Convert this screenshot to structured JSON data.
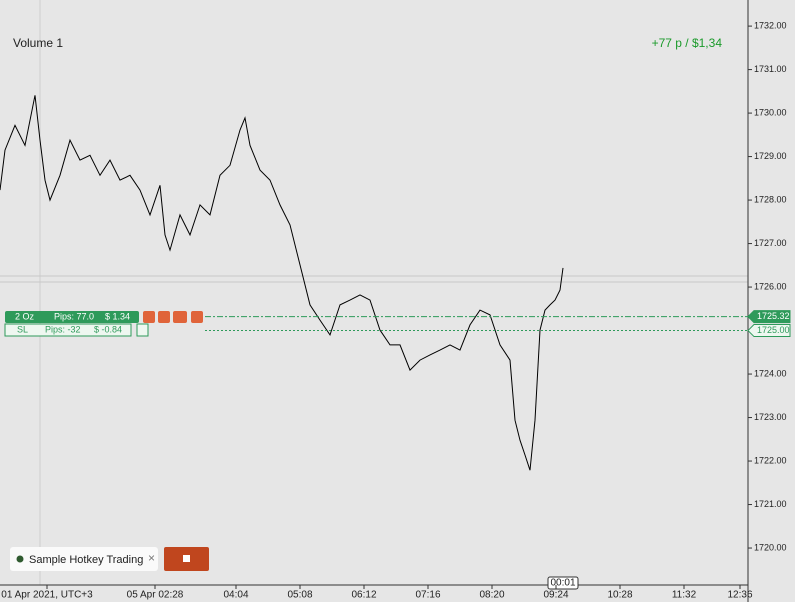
{
  "chart_data": {
    "type": "line",
    "color": "#000000",
    "x": [
      0,
      5,
      15,
      25,
      35,
      40,
      45,
      50,
      60,
      70,
      80,
      90,
      100,
      110,
      120,
      130,
      140,
      150,
      160,
      165,
      170,
      180,
      190,
      200,
      210,
      220,
      230,
      240,
      245,
      250,
      260,
      270,
      280,
      290,
      300,
      310,
      320,
      330,
      340,
      350,
      360,
      370,
      380,
      390,
      400,
      410,
      420,
      430,
      440,
      450,
      460,
      470,
      480,
      490,
      500,
      510,
      515,
      520,
      525,
      530,
      535,
      540,
      545,
      550,
      555,
      560,
      563
    ],
    "values": [
      1728.23,
      1729.15,
      1729.72,
      1729.26,
      1730.41,
      1729.38,
      1728.46,
      1728.0,
      1728.57,
      1729.38,
      1728.92,
      1729.03,
      1728.57,
      1728.92,
      1728.46,
      1728.57,
      1728.23,
      1727.66,
      1728.34,
      1727.2,
      1726.85,
      1727.66,
      1727.2,
      1727.89,
      1727.66,
      1728.57,
      1728.8,
      1729.61,
      1729.89,
      1729.26,
      1728.69,
      1728.46,
      1727.89,
      1727.43,
      1726.51,
      1725.59,
      1725.24,
      1724.9,
      1725.59,
      1725.7,
      1725.82,
      1725.7,
      1725.01,
      1724.67,
      1724.67,
      1724.09,
      1724.32,
      1724.44,
      1724.55,
      1724.67,
      1724.55,
      1725.13,
      1725.47,
      1725.36,
      1724.67,
      1724.32,
      1722.94,
      1722.48,
      1722.14,
      1721.79,
      1722.94,
      1725.01,
      1725.47,
      1725.59,
      1725.7,
      1725.93,
      1726.44
    ],
    "xlim": [
      0,
      748
    ],
    "ylim": [
      1719.15,
      1732.6
    ],
    "xticks": [
      {
        "value": 47,
        "label": "01 Apr 2021, UTC+3"
      },
      {
        "value": 155,
        "label": "05 Apr 02:28"
      },
      {
        "value": 236,
        "label": "04:04"
      },
      {
        "value": 300,
        "label": "05:08"
      },
      {
        "value": 364,
        "label": "06:12"
      },
      {
        "value": 428,
        "label": "07:16"
      },
      {
        "value": 492,
        "label": "08:20"
      },
      {
        "value": 556,
        "label": "09:24"
      },
      {
        "value": 620,
        "label": "10:28"
      },
      {
        "value": 684,
        "label": "11:32"
      },
      {
        "value": 740,
        "label": "12:36"
      }
    ],
    "yticks": [
      {
        "value": 1720,
        "label": "1720.00"
      },
      {
        "value": 1721,
        "label": "1721.00"
      },
      {
        "value": 1722,
        "label": "1722.00"
      },
      {
        "value": 1723,
        "label": "1723.00"
      },
      {
        "value": 1724,
        "label": "1724.00"
      },
      {
        "value": 1725,
        "label": "1725.00"
      },
      {
        "value": 1726,
        "label": "1726.00"
      },
      {
        "value": 1727,
        "label": "1727.00"
      },
      {
        "value": 1728,
        "label": "1728.00"
      },
      {
        "value": 1729,
        "label": "1729.00"
      },
      {
        "value": 1730,
        "label": "1730.00"
      },
      {
        "value": 1731,
        "label": "1731.00"
      },
      {
        "value": 1732,
        "label": "1732.00"
      }
    ],
    "tp_level": 1725.32,
    "sl_level": {
      "value": 1725,
      "label": "1725.00"
    }
  },
  "ui": {
    "symbol": "Volume 1",
    "pnl": "+77 p /  $1,34",
    "order_qty": "2 Oz",
    "order_pips": "Pips: 77.0",
    "order_usd": "$ 1.34",
    "sl": "SL",
    "sl_pips": "Pips: -32",
    "sl_usd": "$ -0.84",
    "strategy": "Sample Hotkey Trading",
    "cursor_time": "00:01"
  }
}
